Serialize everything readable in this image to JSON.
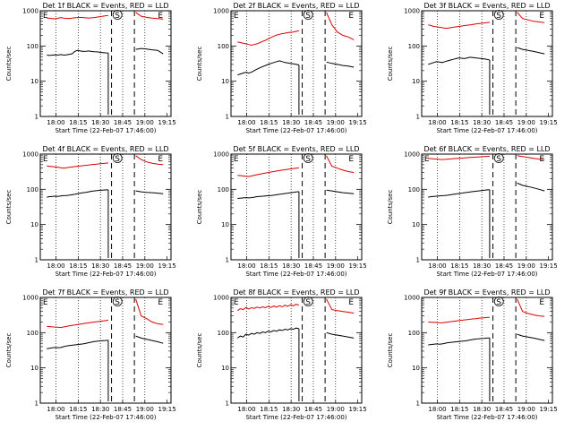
{
  "figure": {
    "series_colors": {
      "events": "#000000",
      "lld": "#dd0000"
    }
  },
  "chart_data": [
    {
      "type": "line",
      "title": "Det 1f BLACK = Events, RED = LLD",
      "xlabel": "Start Time (22-Feb-07 17:46:00)",
      "ylabel": "Counts/sec",
      "yscale": "log",
      "ylim": [
        1,
        1000
      ],
      "yticks": [
        1,
        10,
        100,
        1000
      ],
      "x_ticks": [
        "18:00",
        "18:15",
        "18:30",
        "18:45",
        "19:00",
        "19:15"
      ],
      "markers": [
        {
          "label": "E",
          "position": "left"
        },
        {
          "label": "S",
          "position": "middle"
        },
        {
          "label": "E",
          "position": "right"
        }
      ],
      "series": [
        {
          "name": "LLD",
          "color": "#dd0000",
          "segment1": [
            620,
            610,
            600,
            590,
            610,
            640,
            620,
            610,
            600,
            615,
            630,
            640,
            650,
            640,
            630,
            620,
            630,
            640,
            660,
            680,
            700,
            720,
            730
          ],
          "segment2": [
            900,
            700,
            650,
            620,
            600,
            580
          ]
        },
        {
          "name": "Events",
          "color": "#000000",
          "segment1": [
            55,
            54,
            55,
            56,
            55,
            57,
            55,
            56,
            58,
            60,
            70,
            75,
            72,
            70,
            71,
            72,
            70,
            69,
            68,
            66,
            65,
            64,
            63
          ],
          "segment2": [
            80,
            85,
            82,
            78,
            75,
            60
          ]
        }
      ]
    },
    {
      "type": "line",
      "title": "Det 2f BLACK = Events, RED = LLD",
      "xlabel": "Start Time (22-Feb-07 17:46:00)",
      "ylabel": "Counts/sec",
      "yscale": "log",
      "ylim": [
        1,
        1000
      ],
      "yticks": [
        1,
        10,
        100,
        1000
      ],
      "x_ticks": [
        "18:00",
        "18:15",
        "18:30",
        "18:45",
        "19:00",
        "19:15"
      ],
      "markers": [
        {
          "label": "E",
          "position": "left"
        },
        {
          "label": "S",
          "position": "middle"
        },
        {
          "label": "E",
          "position": "right"
        }
      ],
      "series": [
        {
          "name": "LLD",
          "color": "#dd0000",
          "segment1": [
            130,
            125,
            120,
            115,
            110,
            105,
            110,
            115,
            125,
            135,
            145,
            160,
            175,
            190,
            205,
            215,
            225,
            230,
            240,
            245,
            250,
            260,
            270
          ],
          "segment2": [
            900,
            400,
            250,
            200,
            180,
            150
          ]
        },
        {
          "name": "Events",
          "color": "#000000",
          "segment1": [
            15,
            16,
            17,
            18,
            17,
            18,
            20,
            22,
            24,
            26,
            28,
            30,
            32,
            34,
            36,
            38,
            36,
            34,
            33,
            32,
            31,
            30,
            29
          ],
          "segment2": [
            35,
            32,
            30,
            28,
            27,
            25
          ]
        }
      ]
    },
    {
      "type": "line",
      "title": "Det 3f BLACK = Events, RED = LLD",
      "xlabel": "Start Time (22-Feb-07 17:46:00)",
      "ylabel": "Counts/sec",
      "yscale": "log",
      "ylim": [
        1,
        1000
      ],
      "yticks": [
        1,
        10,
        100,
        1000
      ],
      "x_ticks": [
        "18:00",
        "18:15",
        "18:30",
        "18:45",
        "19:00",
        "19:15"
      ],
      "markers": [
        {
          "label": "S",
          "position": "middle"
        },
        {
          "label": "E",
          "position": "right"
        }
      ],
      "series": [
        {
          "name": "LLD",
          "color": "#dd0000",
          "segment1": [
            400,
            380,
            360,
            350,
            340,
            330,
            320,
            320,
            330,
            340,
            350,
            360,
            370,
            380,
            390,
            400,
            410,
            420,
            430,
            440,
            450,
            460,
            470
          ],
          "segment2": [
            900,
            600,
            550,
            500,
            480,
            460
          ]
        },
        {
          "name": "Events",
          "color": "#000000",
          "segment1": [
            30,
            32,
            34,
            36,
            35,
            34,
            36,
            38,
            40,
            42,
            44,
            46,
            45,
            44,
            46,
            48,
            47,
            46,
            45,
            44,
            43,
            42,
            40
          ],
          "segment2": [
            90,
            80,
            75,
            70,
            65,
            60
          ]
        }
      ]
    },
    {
      "type": "line",
      "title": "Det 4f BLACK = Events, RED = LLD",
      "xlabel": "Start Time (22-Feb-07 17:46:00)",
      "ylabel": "Counts/sec",
      "yscale": "log",
      "ylim": [
        1,
        1000
      ],
      "yticks": [
        1,
        10,
        100,
        1000
      ],
      "x_ticks": [
        "18:00",
        "18:15",
        "18:30",
        "18:45",
        "19:00",
        "19:15"
      ],
      "markers": [
        {
          "label": "E",
          "position": "left"
        },
        {
          "label": "S",
          "position": "middle"
        },
        {
          "label": "E",
          "position": "right"
        }
      ],
      "series": [
        {
          "name": "LLD",
          "color": "#dd0000",
          "segment1": [
            460,
            450,
            440,
            430,
            420,
            410,
            400,
            410,
            420,
            430,
            440,
            450,
            460,
            470,
            480,
            490,
            500,
            510,
            520,
            530,
            540,
            550,
            560
          ],
          "segment2": [
            900,
            700,
            600,
            550,
            520,
            500
          ]
        },
        {
          "name": "Events",
          "color": "#000000",
          "segment1": [
            60,
            62,
            63,
            64,
            63,
            65,
            66,
            67,
            68,
            70,
            72,
            75,
            78,
            80,
            82,
            85,
            88,
            90,
            92,
            94,
            95,
            96,
            97
          ],
          "segment2": [
            90,
            85,
            82,
            80,
            78,
            75
          ]
        }
      ]
    },
    {
      "type": "line",
      "title": "Det 5f BLACK = Events, RED = LLD",
      "xlabel": "Start Time (22-Feb-07 17:46:00)",
      "ylabel": "Counts/sec",
      "yscale": "log",
      "ylim": [
        1,
        1000
      ],
      "yticks": [
        1,
        10,
        100,
        1000
      ],
      "x_ticks": [
        "18:00",
        "18:15",
        "18:30",
        "18:45",
        "19:00",
        "19:15"
      ],
      "markers": [
        {
          "label": "E",
          "position": "left"
        },
        {
          "label": "S",
          "position": "middle"
        },
        {
          "label": "E",
          "position": "right"
        }
      ],
      "series": [
        {
          "name": "LLD",
          "color": "#dd0000",
          "segment1": [
            250,
            245,
            240,
            235,
            230,
            240,
            250,
            260,
            270,
            280,
            290,
            300,
            310,
            320,
            330,
            340,
            350,
            360,
            370,
            380,
            390,
            400,
            410
          ],
          "segment2": [
            900,
            450,
            400,
            350,
            320,
            300
          ]
        },
        {
          "name": "Events",
          "color": "#000000",
          "segment1": [
            55,
            56,
            57,
            58,
            57,
            58,
            60,
            62,
            63,
            64,
            65,
            66,
            67,
            68,
            70,
            72,
            74,
            76,
            78,
            80,
            82,
            84,
            86
          ],
          "segment2": [
            95,
            90,
            85,
            80,
            78,
            75
          ]
        }
      ]
    },
    {
      "type": "line",
      "title": "Det 6f BLACK = Events, RED = LLD",
      "xlabel": "Start Time (22-Feb-07 17:46:00)",
      "ylabel": "Counts/sec",
      "yscale": "log",
      "ylim": [
        1,
        1000
      ],
      "yticks": [
        1,
        10,
        100,
        1000
      ],
      "x_ticks": [
        "18:00",
        "18:15",
        "18:30",
        "18:45",
        "19:00",
        "19:15"
      ],
      "markers": [
        {
          "label": "E",
          "position": "left"
        },
        {
          "label": "S",
          "position": "middle"
        },
        {
          "label": "E",
          "position": "right"
        }
      ],
      "series": [
        {
          "name": "LLD",
          "color": "#dd0000",
          "segment1": [
            750,
            740,
            730,
            720,
            710,
            700,
            710,
            720,
            730,
            740,
            750,
            760,
            770,
            780,
            790,
            800,
            810,
            820,
            830,
            840,
            850,
            860,
            870
          ],
          "segment2": [
            900,
            850,
            800,
            760,
            720,
            700
          ]
        },
        {
          "name": "Events",
          "color": "#000000",
          "segment1": [
            60,
            62,
            63,
            64,
            65,
            66,
            67,
            68,
            70,
            72,
            74,
            76,
            78,
            80,
            82,
            84,
            86,
            88,
            90,
            92,
            94,
            96,
            98
          ],
          "segment2": [
            150,
            130,
            120,
            110,
            100,
            90
          ]
        }
      ]
    },
    {
      "type": "line",
      "title": "Det 7f BLACK = Events, RED = LLD",
      "xlabel": "Start Time (22-Feb-07 17:46:00)",
      "ylabel": "Counts/sec",
      "yscale": "log",
      "ylim": [
        1,
        1000
      ],
      "yticks": [
        1,
        10,
        100,
        1000
      ],
      "x_ticks": [
        "18:00",
        "18:15",
        "18:30",
        "18:45",
        "19:00",
        "19:15"
      ],
      "markers": [
        {
          "label": "E",
          "position": "left"
        },
        {
          "label": "S",
          "position": "middle"
        },
        {
          "label": "E",
          "position": "right"
        }
      ],
      "series": [
        {
          "name": "LLD",
          "color": "#dd0000",
          "segment1": [
            150,
            148,
            146,
            144,
            142,
            140,
            145,
            150,
            155,
            160,
            165,
            170,
            175,
            180,
            185,
            190,
            195,
            200,
            205,
            210,
            215,
            220,
            225
          ],
          "segment2": [
            900,
            300,
            250,
            200,
            180,
            170
          ]
        },
        {
          "name": "Events",
          "color": "#000000",
          "segment1": [
            35,
            36,
            37,
            38,
            37,
            38,
            40,
            42,
            43,
            44,
            45,
            46,
            47,
            48,
            50,
            52,
            54,
            56,
            57,
            58,
            59,
            60,
            61
          ],
          "segment2": [
            80,
            70,
            65,
            60,
            55,
            50
          ]
        }
      ]
    },
    {
      "type": "line",
      "title": "Det 8f BLACK = Events, RED = LLD",
      "xlabel": "Start Time (22-Feb-07 17:46:00)",
      "ylabel": "Counts/sec",
      "yscale": "log",
      "ylim": [
        1,
        1000
      ],
      "yticks": [
        1,
        10,
        100,
        1000
      ],
      "x_ticks": [
        "18:00",
        "18:15",
        "18:30",
        "18:45",
        "19:00",
        "19:15"
      ],
      "markers": [
        {
          "label": "E",
          "position": "left"
        },
        {
          "label": "S",
          "position": "middle"
        },
        {
          "label": "E",
          "position": "right"
        }
      ],
      "series": [
        {
          "name": "LLD",
          "color": "#dd0000",
          "segment1": [
            420,
            480,
            450,
            520,
            470,
            510,
            490,
            530,
            500,
            540,
            510,
            560,
            520,
            570,
            530,
            580,
            540,
            600,
            560,
            620,
            580,
            640,
            600
          ],
          "segment2": [
            900,
            450,
            420,
            400,
            380,
            360
          ]
        },
        {
          "name": "Events",
          "color": "#000000",
          "segment1": [
            70,
            80,
            75,
            90,
            85,
            95,
            90,
            100,
            95,
            105,
            100,
            110,
            105,
            115,
            110,
            120,
            115,
            125,
            120,
            130,
            125,
            135,
            130
          ],
          "segment2": [
            100,
            90,
            85,
            80,
            75,
            70
          ]
        }
      ]
    },
    {
      "type": "line",
      "title": "Det 9f BLACK = Events, RED = LLD",
      "xlabel": "Start Time (22-Feb-07 17:46:00)",
      "ylabel": "Counts/sec",
      "yscale": "log",
      "ylim": [
        1,
        1000
      ],
      "yticks": [
        1,
        10,
        100,
        1000
      ],
      "x_ticks": [
        "18:00",
        "18:15",
        "18:30",
        "18:45",
        "19:00",
        "19:15"
      ],
      "markers": [
        {
          "label": "S",
          "position": "middle"
        },
        {
          "label": "E",
          "position": "right"
        }
      ],
      "series": [
        {
          "name": "LLD",
          "color": "#dd0000",
          "segment1": [
            200,
            198,
            196,
            194,
            192,
            190,
            195,
            200,
            205,
            210,
            215,
            220,
            225,
            230,
            235,
            240,
            245,
            250,
            255,
            260,
            265,
            270,
            275
          ],
          "segment2": [
            900,
            400,
            350,
            320,
            300,
            290
          ]
        },
        {
          "name": "Events",
          "color": "#000000",
          "segment1": [
            45,
            46,
            47,
            48,
            47,
            48,
            50,
            52,
            53,
            54,
            55,
            56,
            57,
            58,
            60,
            62,
            64,
            66,
            67,
            68,
            69,
            70,
            71
          ],
          "segment2": [
            90,
            80,
            75,
            70,
            65,
            60
          ]
        }
      ]
    }
  ]
}
